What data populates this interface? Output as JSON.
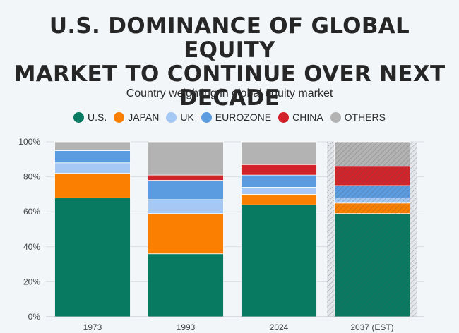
{
  "header": {
    "title_line1": "U.S. DOMINANCE OF GLOBAL EQUITY",
    "title_line2": "MARKET TO CONTINUE OVER NEXT",
    "title_line3": "DECADE",
    "subtitle": "Country weighting in global equity market"
  },
  "chart_data": {
    "type": "bar",
    "stacked": true,
    "title": "U.S. DOMINANCE OF GLOBAL EQUITY MARKET TO CONTINUE OVER NEXT DECADE",
    "subtitle": "Country weighting in global equity market",
    "categories": [
      "1973",
      "1993",
      "2024",
      "2037 (EST)"
    ],
    "estimated_categories": [
      "2037 (EST)"
    ],
    "ylim": [
      0,
      100
    ],
    "yticks": [
      "0%",
      "20%",
      "40%",
      "60%",
      "80%",
      "100%"
    ],
    "grid": true,
    "legend_position": "top-center",
    "series": [
      {
        "name": "U.S.",
        "color": "#087a62",
        "values": [
          68,
          36,
          64,
          59
        ]
      },
      {
        "name": "JAPAN",
        "color": "#fb7f00",
        "values": [
          14,
          23,
          6,
          6
        ]
      },
      {
        "name": "UK",
        "color": "#a6c8f5",
        "values": [
          6,
          8,
          4,
          3
        ]
      },
      {
        "name": "EUROZONE",
        "color": "#5b9be0",
        "values": [
          7,
          11,
          7,
          7
        ]
      },
      {
        "name": "CHINA",
        "color": "#d1242a",
        "values": [
          0,
          3,
          6,
          11
        ]
      },
      {
        "name": "OTHERS",
        "color": "#b3b3b3",
        "values": [
          5,
          19,
          13,
          14
        ]
      }
    ]
  }
}
